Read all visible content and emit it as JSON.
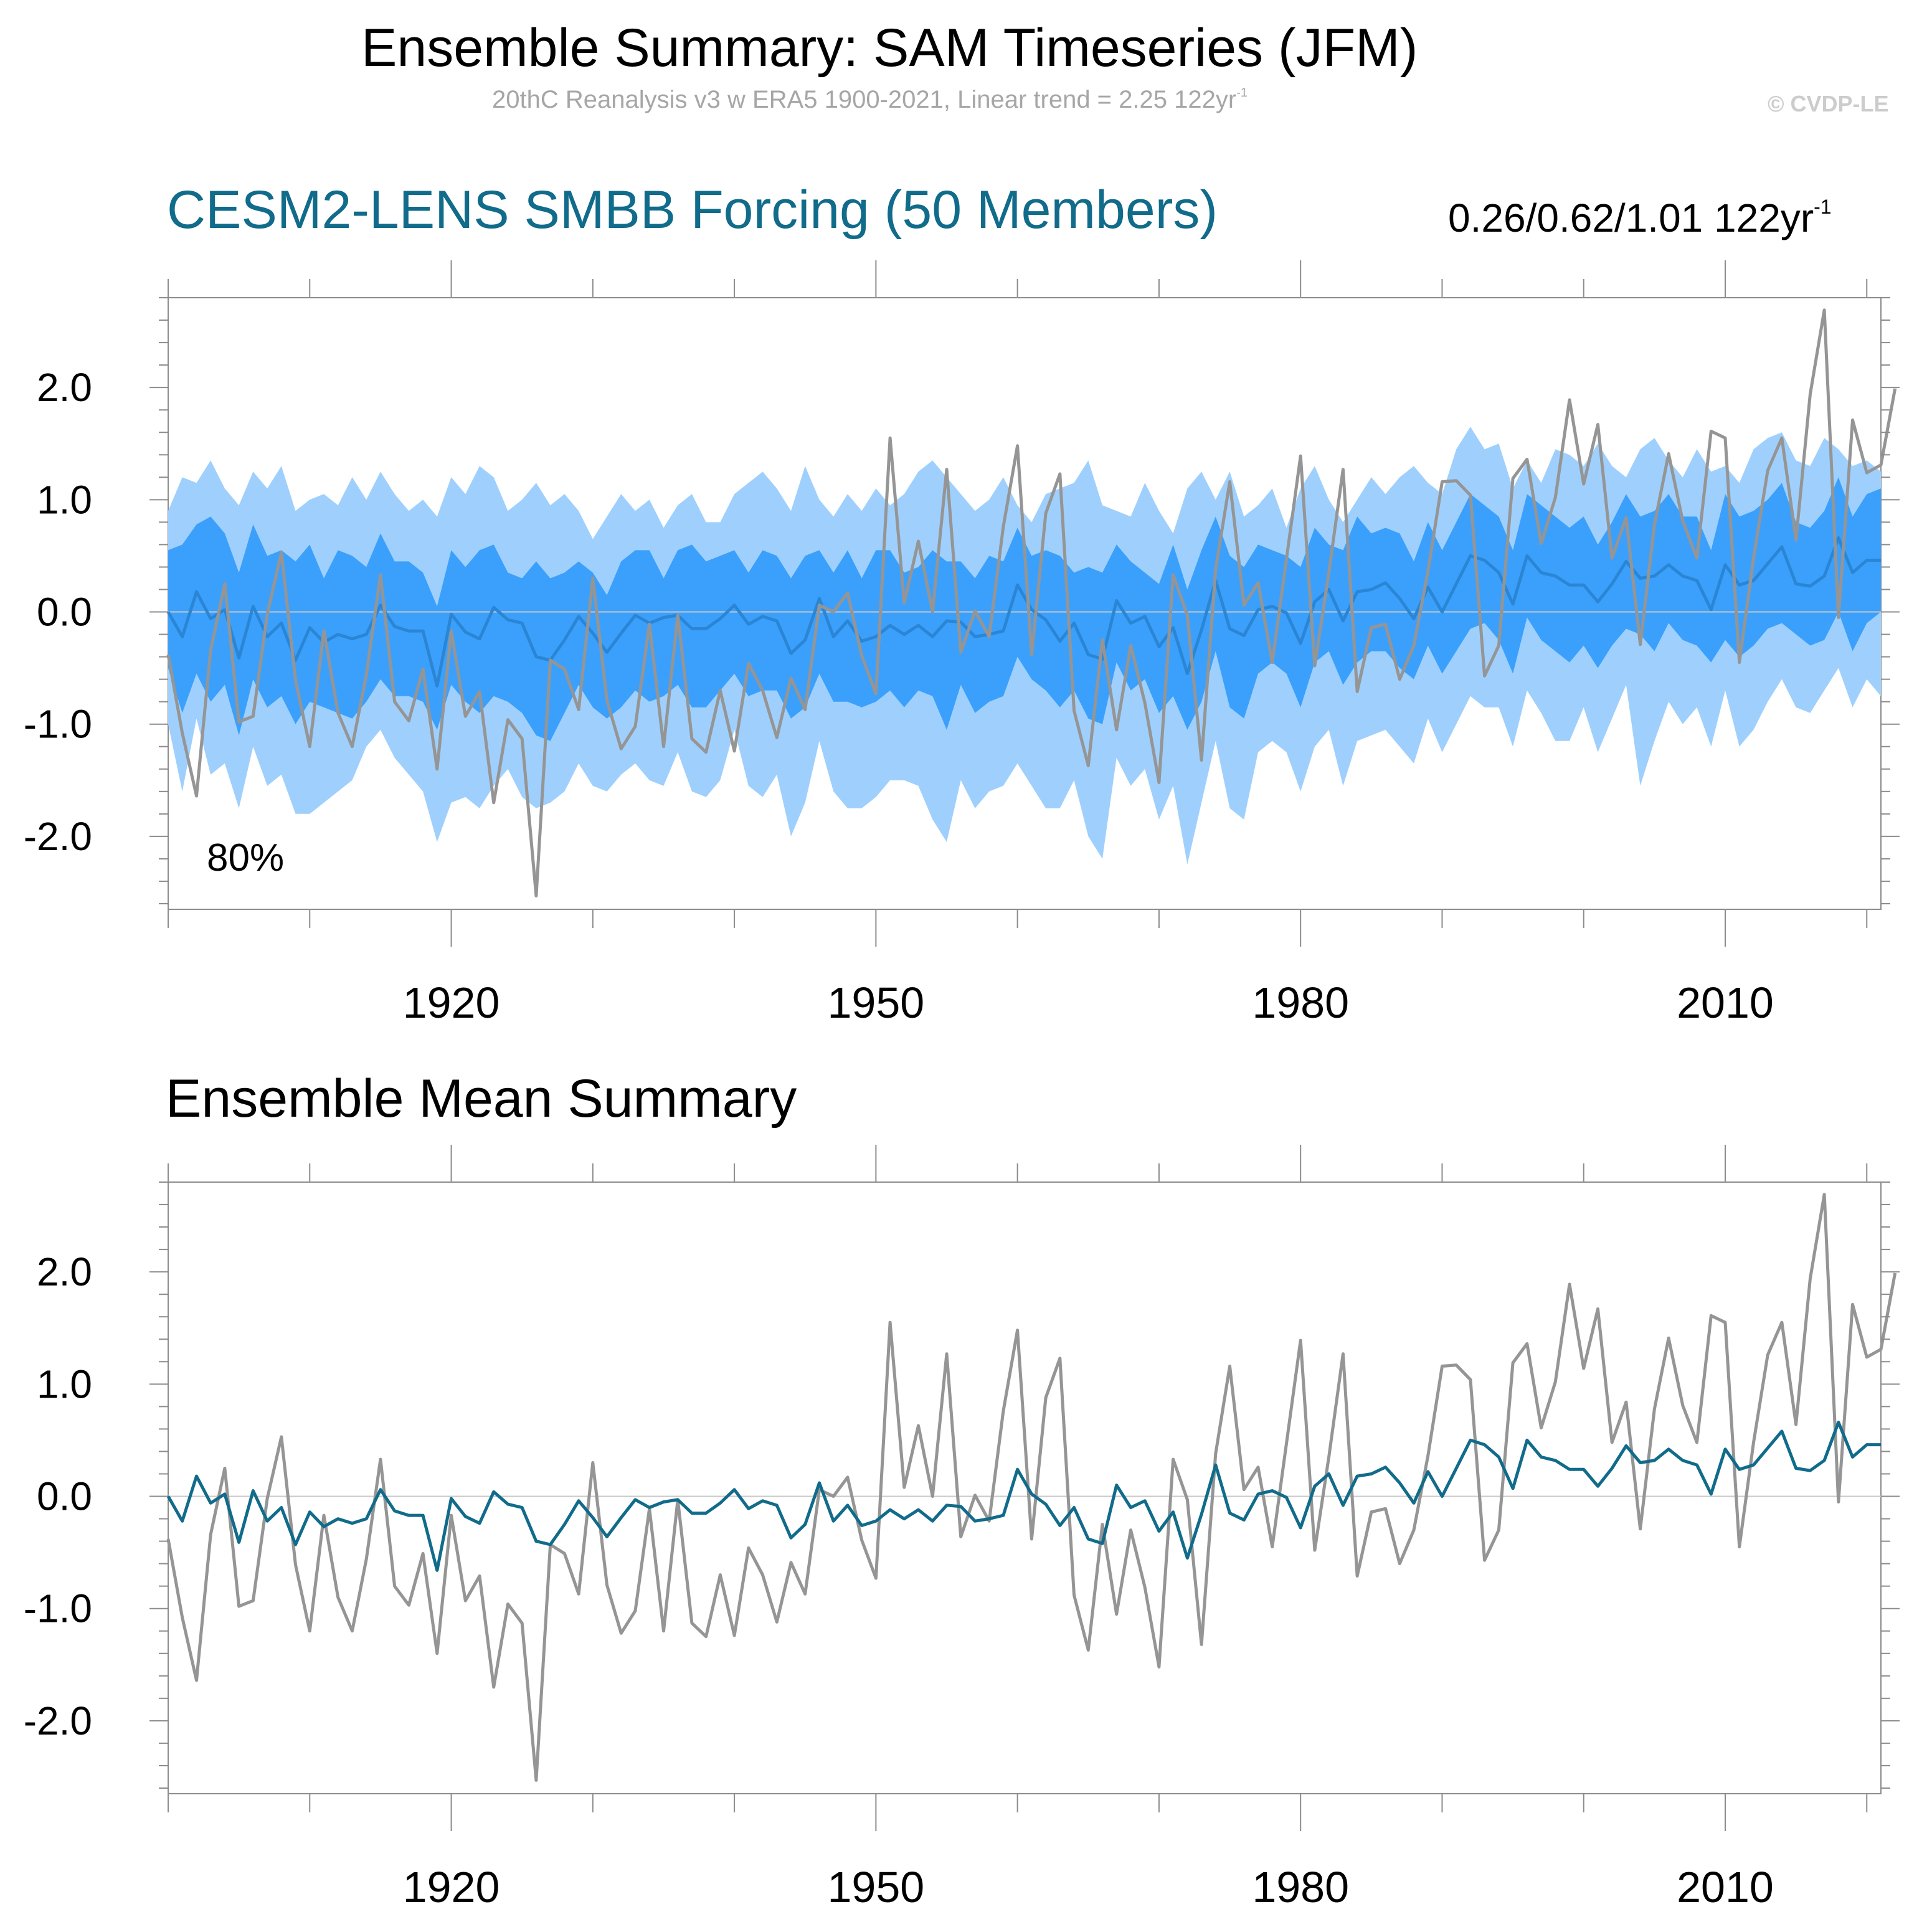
{
  "title": "Ensemble Summary: SAM Timeseries (JFM)",
  "subtitle": {
    "text": "20thC Reanalysis v3 w ERA5 1900-2021, Linear trend = 2.25 122yr",
    "superscript": "-1"
  },
  "copyright": "© CVDP-LE",
  "colors": {
    "band_outer": "#9fd0fd",
    "band_inner": "#3ba0fc",
    "ensemble_mean_top": "#2a86d4",
    "ensemble_mean_bottom": "#116b8a",
    "observations": "#959595",
    "title_blue": "#116b8a"
  },
  "chart_data": [
    {
      "type": "area",
      "title": "CESM2-LENS SMBB Forcing (50 Members)",
      "trend_label": {
        "text": "0.26/0.62/1.01 122yr",
        "superscript": "-1"
      },
      "annotation": "80%",
      "xlim": [
        1900,
        2021
      ],
      "ylim": [
        -2.65,
        2.8
      ],
      "xticks": [
        1920,
        1950,
        1980,
        2010
      ],
      "yticks": [
        2.0,
        1.0,
        0.0,
        -1.0,
        -2.0
      ],
      "ytick_labels": [
        "2.0",
        "1.0",
        "0.0",
        "-1.0",
        "-2.0"
      ],
      "x_start": 1900,
      "series": [
        {
          "name": "",
          "role": "ensemble-mean",
          "values": [
            0.0,
            -0.22,
            0.18,
            -0.06,
            0.02,
            -0.41,
            0.05,
            -0.22,
            -0.1,
            -0.43,
            -0.14,
            -0.27,
            -0.2,
            -0.24,
            -0.2,
            0.06,
            -0.13,
            -0.17,
            -0.17,
            -0.66,
            -0.02,
            -0.18,
            -0.24,
            0.04,
            -0.07,
            -0.1,
            -0.4,
            -0.43,
            -0.25,
            -0.04,
            -0.19,
            -0.36,
            -0.19,
            -0.03,
            -0.1,
            -0.05,
            -0.03,
            -0.15,
            -0.15,
            -0.06,
            0.06,
            -0.11,
            -0.04,
            -0.08,
            -0.37,
            -0.25,
            0.12,
            -0.22,
            -0.08,
            -0.26,
            -0.22,
            -0.12,
            -0.2,
            -0.12,
            -0.22,
            -0.08,
            -0.09,
            -0.22,
            -0.2,
            -0.17,
            0.24,
            0.02,
            -0.07,
            -0.26,
            -0.1,
            -0.38,
            -0.42,
            0.1,
            -0.1,
            -0.04,
            -0.31,
            -0.14,
            -0.55,
            -0.16,
            0.28,
            -0.15,
            -0.21,
            0.02,
            0.05,
            -0.01,
            -0.28,
            0.09,
            0.2,
            -0.08,
            0.18,
            0.2,
            0.26,
            0.12,
            -0.06,
            0.22,
            0.0,
            0.25,
            0.5,
            0.46,
            0.35,
            0.07,
            0.5,
            0.35,
            0.32,
            0.24,
            0.24,
            0.09,
            0.25,
            0.45,
            0.3,
            0.32,
            0.42,
            0.32,
            0.28,
            0.02,
            0.42,
            0.24,
            0.28,
            0.43,
            0.58,
            0.25,
            0.23,
            0.32,
            0.66,
            0.35,
            0.46,
            0.46
          ]
        },
        {
          "name": "",
          "role": "observations",
          "values": [
            -0.38,
            -1.08,
            -1.64,
            -0.34,
            0.25,
            -0.98,
            -0.93,
            -0.02,
            0.53,
            -0.61,
            -1.2,
            -0.17,
            -0.9,
            -1.2,
            -0.56,
            0.33,
            -0.8,
            -0.97,
            -0.51,
            -1.4,
            -0.17,
            -0.93,
            -0.71,
            -1.7,
            -0.96,
            -1.13,
            -2.53,
            -0.43,
            -0.51,
            -0.87,
            0.3,
            -0.79,
            -1.22,
            -1.02,
            -0.11,
            -1.2,
            -0.03,
            -1.13,
            -1.25,
            -0.7,
            -1.24,
            -0.46,
            -0.7,
            -1.12,
            -0.59,
            -0.87,
            0.06,
            0.0,
            0.17,
            -0.39,
            -0.73,
            1.55,
            0.08,
            0.63,
            0.0,
            1.27,
            -0.36,
            0.01,
            -0.22,
            0.76,
            1.48,
            -0.38,
            0.88,
            1.23,
            -0.88,
            -1.37,
            -0.25,
            -1.05,
            -0.3,
            -0.81,
            -1.52,
            0.33,
            -0.03,
            -1.32,
            0.38,
            1.16,
            0.06,
            0.26,
            -0.45,
            0.47,
            1.39,
            -0.48,
            0.35,
            1.27,
            -0.71,
            -0.14,
            -0.11,
            -0.6,
            -0.3,
            0.36,
            1.16,
            1.17,
            1.04,
            -0.57,
            -0.3,
            1.19,
            1.36,
            0.61,
            1.02,
            1.89,
            1.14,
            1.67,
            0.48,
            0.84,
            -0.29,
            0.78,
            1.41,
            0.81,
            0.48,
            1.61,
            1.55,
            -0.45,
            0.48,
            1.26,
            1.55,
            0.64,
            1.94,
            2.69,
            -0.05,
            1.71,
            1.24,
            1.31,
            1.99
          ]
        },
        {
          "name": "",
          "role": "band-outer-upper",
          "values": [
            0.9,
            1.2,
            1.15,
            1.35,
            1.1,
            0.95,
            1.25,
            1.1,
            1.3,
            0.9,
            1.0,
            1.05,
            0.95,
            1.2,
            1.0,
            1.25,
            1.05,
            0.9,
            1.0,
            0.85,
            1.2,
            1.05,
            1.3,
            1.2,
            0.9,
            1.0,
            1.15,
            0.95,
            1.05,
            0.9,
            0.65,
            0.85,
            1.05,
            0.9,
            1.0,
            0.75,
            0.95,
            1.05,
            0.8,
            0.8,
            1.05,
            1.15,
            1.25,
            1.1,
            0.9,
            1.3,
            1.0,
            0.85,
            1.05,
            0.9,
            1.1,
            0.95,
            1.05,
            1.25,
            1.35,
            1.2,
            1.05,
            0.9,
            1.0,
            1.2,
            0.95,
            0.8,
            1.05,
            1.1,
            1.15,
            1.35,
            0.95,
            0.9,
            0.85,
            1.15,
            0.9,
            0.7,
            1.1,
            1.25,
            1.0,
            1.25,
            0.85,
            0.95,
            1.1,
            0.75,
            1.1,
            1.3,
            1.0,
            0.8,
            1.0,
            1.2,
            1.05,
            1.2,
            1.3,
            1.15,
            1.05,
            1.45,
            1.65,
            1.45,
            1.5,
            1.1,
            1.35,
            1.15,
            1.45,
            1.4,
            1.3,
            1.5,
            1.3,
            1.2,
            1.45,
            1.55,
            1.35,
            1.2,
            1.45,
            1.25,
            1.3,
            1.15,
            1.45,
            1.55,
            1.6,
            1.35,
            1.3,
            1.55,
            1.45,
            1.3,
            1.35,
            1.25
          ]
        },
        {
          "name": "",
          "role": "band-inner-upper",
          "values": [
            0.55,
            0.6,
            0.78,
            0.85,
            0.7,
            0.35,
            0.78,
            0.5,
            0.55,
            0.45,
            0.6,
            0.3,
            0.55,
            0.5,
            0.4,
            0.7,
            0.45,
            0.45,
            0.35,
            0.05,
            0.55,
            0.4,
            0.55,
            0.6,
            0.35,
            0.3,
            0.45,
            0.3,
            0.35,
            0.45,
            0.35,
            0.15,
            0.45,
            0.55,
            0.55,
            0.3,
            0.55,
            0.6,
            0.45,
            0.5,
            0.55,
            0.35,
            0.55,
            0.5,
            0.3,
            0.5,
            0.55,
            0.35,
            0.55,
            0.3,
            0.55,
            0.55,
            0.35,
            0.4,
            0.55,
            0.45,
            0.45,
            0.3,
            0.5,
            0.45,
            0.75,
            0.5,
            0.55,
            0.5,
            0.35,
            0.4,
            0.35,
            0.6,
            0.45,
            0.35,
            0.25,
            0.6,
            0.2,
            0.55,
            0.85,
            0.5,
            0.4,
            0.6,
            0.55,
            0.5,
            0.4,
            0.75,
            0.6,
            0.55,
            0.85,
            0.7,
            0.75,
            0.7,
            0.45,
            0.8,
            0.55,
            0.8,
            1.05,
            0.95,
            0.85,
            0.55,
            1.05,
            0.95,
            0.85,
            0.75,
            0.85,
            0.6,
            0.8,
            1.05,
            0.85,
            0.9,
            1.05,
            0.85,
            0.85,
            0.55,
            1.05,
            0.85,
            0.9,
            1.0,
            1.15,
            0.8,
            0.75,
            0.9,
            1.2,
            0.85,
            1.05,
            1.1
          ]
        },
        {
          "name": "",
          "role": "band-inner-lower",
          "values": [
            -0.5,
            -0.9,
            -0.55,
            -0.8,
            -0.65,
            -1.1,
            -0.6,
            -0.85,
            -0.75,
            -1.0,
            -0.8,
            -0.85,
            -0.9,
            -0.95,
            -0.8,
            -0.6,
            -0.75,
            -0.75,
            -0.8,
            -1.05,
            -0.65,
            -0.8,
            -0.9,
            -0.75,
            -0.8,
            -0.9,
            -1.1,
            -1.15,
            -0.9,
            -0.65,
            -0.85,
            -0.95,
            -0.85,
            -0.7,
            -0.8,
            -0.75,
            -0.65,
            -0.85,
            -0.85,
            -0.7,
            -0.55,
            -0.75,
            -0.7,
            -0.7,
            -0.95,
            -0.85,
            -0.55,
            -0.8,
            -0.8,
            -0.85,
            -0.8,
            -0.7,
            -0.85,
            -0.7,
            -0.75,
            -1.05,
            -0.65,
            -0.9,
            -0.8,
            -0.75,
            -0.4,
            -0.6,
            -0.7,
            -0.85,
            -0.7,
            -0.95,
            -1.0,
            -0.45,
            -0.7,
            -0.6,
            -0.9,
            -0.75,
            -1.05,
            -0.8,
            -0.35,
            -0.85,
            -0.95,
            -0.55,
            -0.45,
            -0.55,
            -0.85,
            -0.45,
            -0.35,
            -0.65,
            -0.45,
            -0.35,
            -0.35,
            -0.5,
            -0.6,
            -0.3,
            -0.55,
            -0.35,
            -0.15,
            -0.1,
            -0.25,
            -0.55,
            -0.05,
            -0.25,
            -0.35,
            -0.45,
            -0.3,
            -0.5,
            -0.3,
            -0.15,
            -0.2,
            -0.35,
            -0.1,
            -0.25,
            -0.3,
            -0.45,
            -0.25,
            -0.4,
            -0.3,
            -0.15,
            -0.1,
            -0.2,
            -0.3,
            -0.25,
            0.0,
            -0.35,
            -0.1,
            0.0
          ]
        },
        {
          "name": "",
          "role": "band-outer-lower",
          "values": [
            -1.0,
            -1.6,
            -0.95,
            -1.45,
            -1.35,
            -1.75,
            -1.2,
            -1.55,
            -1.45,
            -1.8,
            -1.8,
            -1.7,
            -1.6,
            -1.5,
            -1.2,
            -1.05,
            -1.3,
            -1.45,
            -1.6,
            -2.05,
            -1.7,
            -1.65,
            -1.75,
            -1.55,
            -1.4,
            -1.65,
            -1.75,
            -1.7,
            -1.6,
            -1.35,
            -1.55,
            -1.6,
            -1.45,
            -1.35,
            -1.5,
            -1.55,
            -1.25,
            -1.6,
            -1.65,
            -1.5,
            -1.05,
            -1.55,
            -1.65,
            -1.45,
            -2.0,
            -1.7,
            -1.15,
            -1.6,
            -1.75,
            -1.75,
            -1.65,
            -1.5,
            -1.5,
            -1.55,
            -1.85,
            -2.05,
            -1.5,
            -1.75,
            -1.6,
            -1.55,
            -1.35,
            -1.55,
            -1.75,
            -1.75,
            -1.5,
            -2.0,
            -2.2,
            -1.3,
            -1.55,
            -1.4,
            -1.85,
            -1.55,
            -2.25,
            -1.7,
            -1.15,
            -1.75,
            -1.85,
            -1.25,
            -1.15,
            -1.25,
            -1.6,
            -1.2,
            -1.05,
            -1.55,
            -1.15,
            -1.1,
            -1.05,
            -1.2,
            -1.35,
            -0.95,
            -1.25,
            -1.0,
            -0.75,
            -0.85,
            -0.85,
            -1.2,
            -0.7,
            -0.9,
            -1.15,
            -1.15,
            -0.85,
            -1.25,
            -0.95,
            -0.65,
            -1.55,
            -1.15,
            -0.8,
            -1.0,
            -0.85,
            -1.2,
            -0.7,
            -1.2,
            -1.05,
            -0.8,
            -0.6,
            -0.85,
            -0.9,
            -0.7,
            -0.5,
            -0.85,
            -0.6,
            -0.75
          ]
        }
      ]
    },
    {
      "type": "line",
      "title": "Ensemble Mean Summary",
      "xlim": [
        1900,
        2021
      ],
      "ylim": [
        -2.65,
        2.8
      ],
      "xticks": [
        1920,
        1950,
        1980,
        2010
      ],
      "yticks": [
        2.0,
        1.0,
        0.0,
        -1.0,
        -2.0
      ],
      "ytick_labels": [
        "2.0",
        "1.0",
        "0.0",
        "-1.0",
        "-2.0"
      ],
      "series_ref": [
        "ensemble-mean",
        "observations"
      ]
    }
  ]
}
